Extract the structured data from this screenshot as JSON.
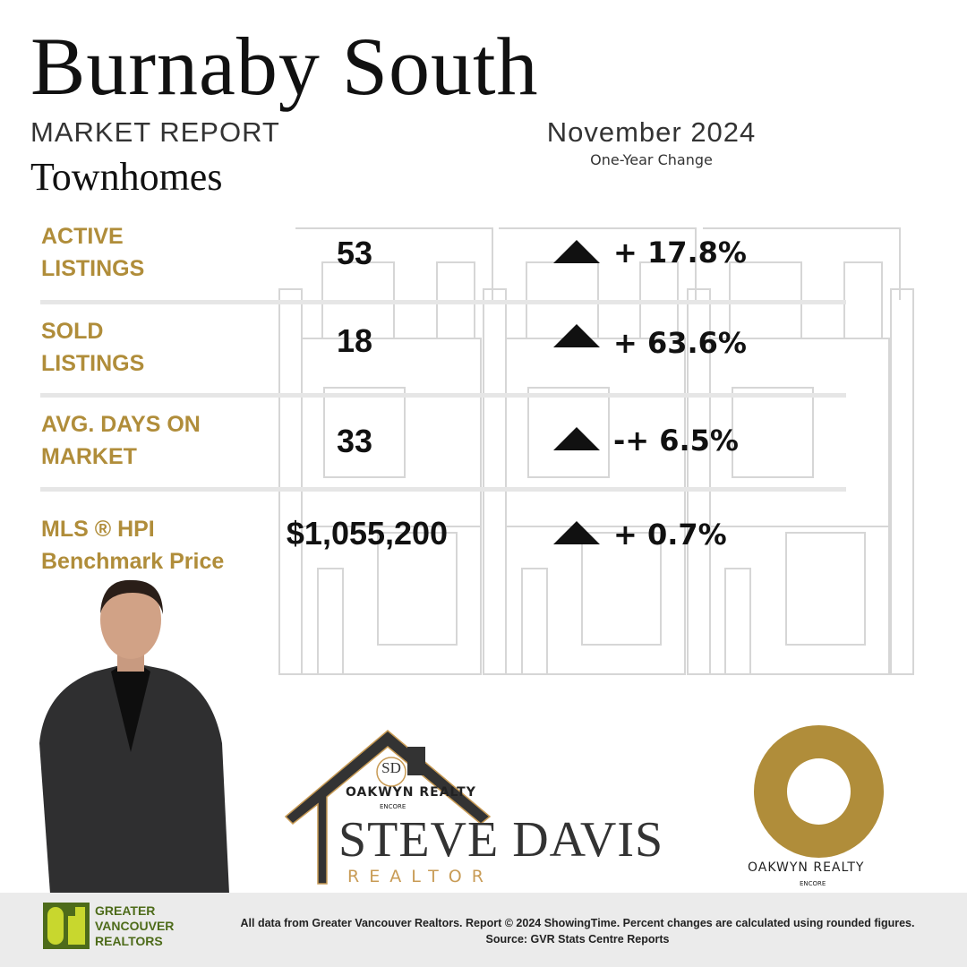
{
  "header": {
    "title": "Burnaby South",
    "subtitle": "MARKET REPORT",
    "category": "Townhomes",
    "month": "November 2024",
    "change_heading": "One-Year Change"
  },
  "stats": [
    {
      "label_line1": "ACTIVE",
      "label_line2": "LISTINGS",
      "value": "53",
      "change": "+ 17.8%",
      "direction": "up"
    },
    {
      "label_line1": "SOLD",
      "label_line2": "LISTINGS",
      "value": "18",
      "change": "+ 63.6%",
      "direction": "up"
    },
    {
      "label_line1": "AVG. DAYS ON",
      "label_line2": "MARKET",
      "value": "33",
      "change": "-+ 6.5%",
      "direction": "up"
    },
    {
      "label_line1": "MLS ®  HPI",
      "label_line2": "Benchmark Price",
      "value": "$1,055,200",
      "change": "+ 0.7%",
      "direction": "up"
    }
  ],
  "branding": {
    "agent_name": "STEVE DAVIS",
    "agent_title": "REALTOR",
    "monogram": "SD",
    "brokerage": "OAKWYN REALTY",
    "brokerage_sub": "ENCORE",
    "board_logo": "GREATER VANCOUVER REALTORS"
  },
  "footer": {
    "note": "All data from Greater Vancouver Realtors. Report © 2024 ShowingTime. Percent changes are calculated using rounded figures. Source: GVR Stats Centre Reports"
  },
  "colors": {
    "accent": "#b08d3a",
    "text": "#111111",
    "footer_bg": "#ebebeb",
    "gvr_green": "#4d6b1a",
    "gvr_lime": "#c8d72e"
  }
}
